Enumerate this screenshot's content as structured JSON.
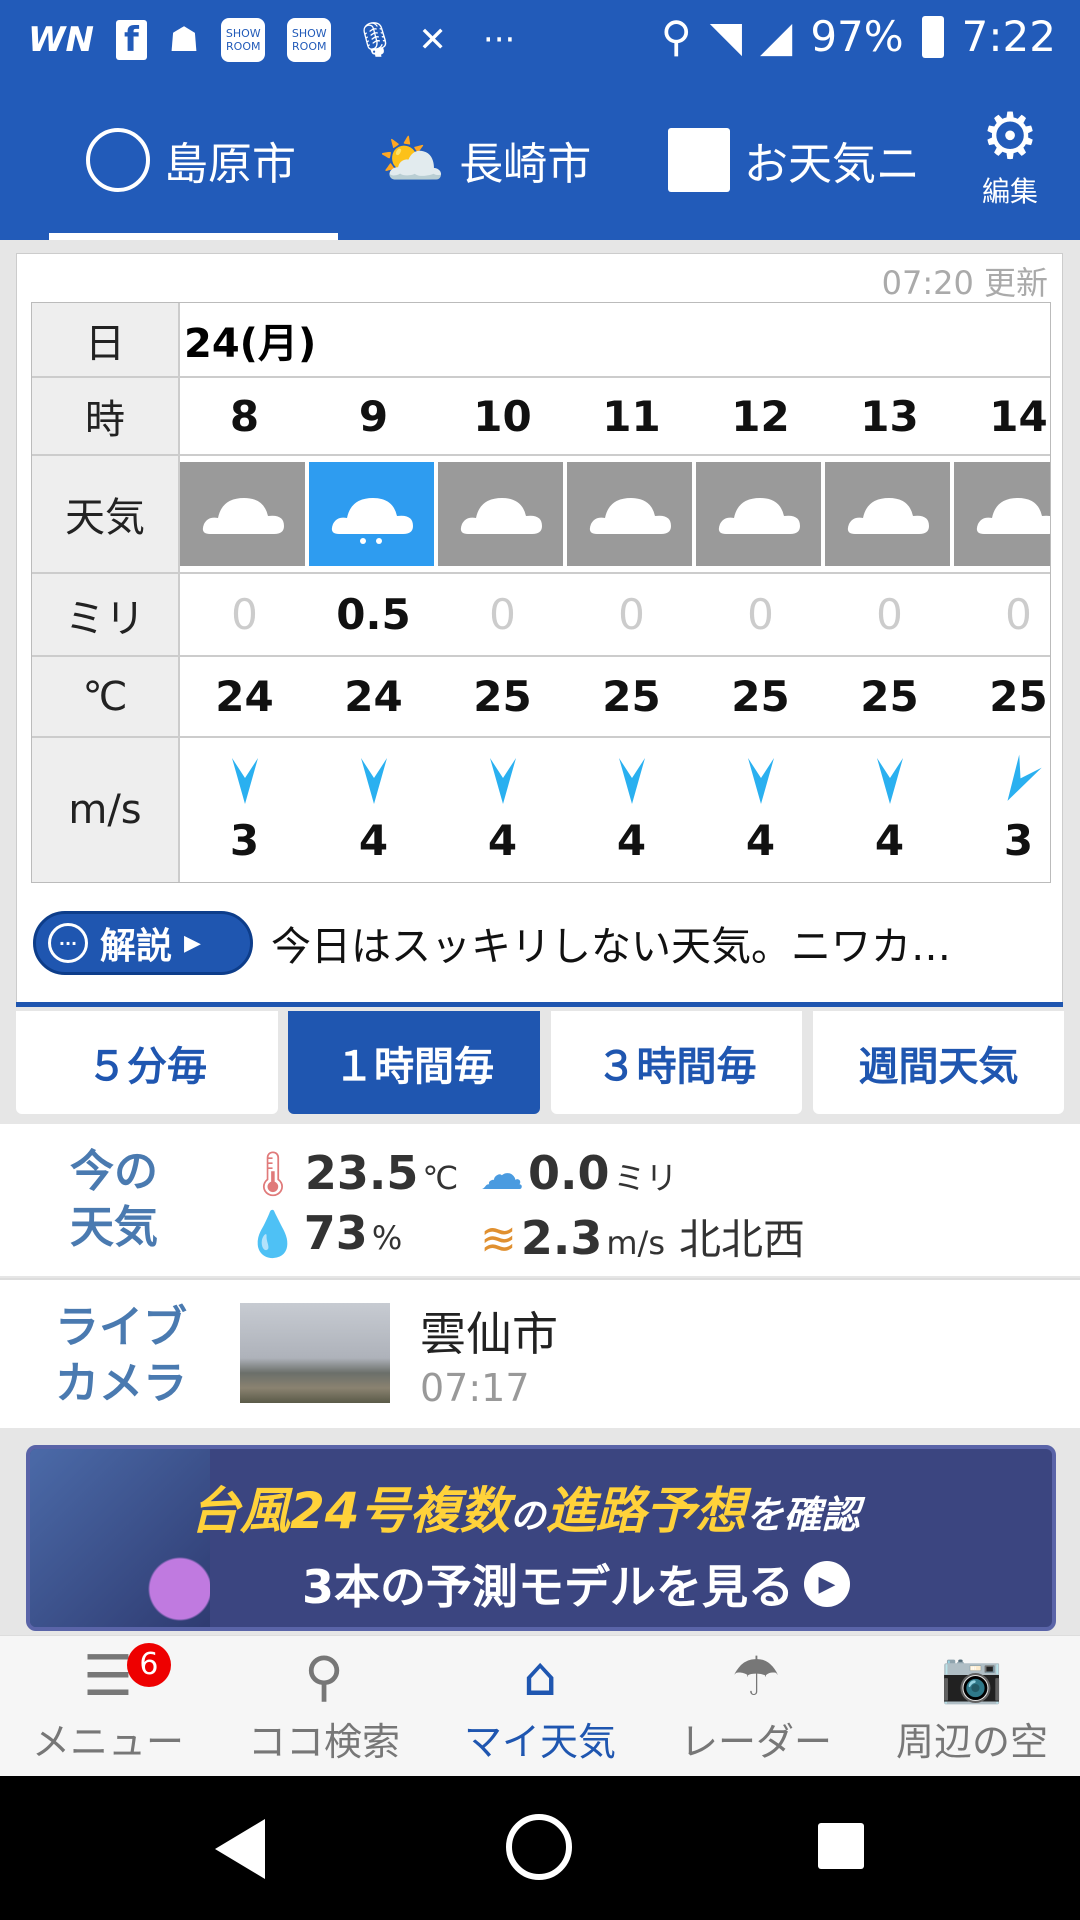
{
  "status_bar": {
    "battery": "97%",
    "time": "7:22",
    "icons": [
      "weathernews-icon",
      "facebook-icon",
      "app-mascot-icon",
      "showroom-icon",
      "showroom-icon",
      "voice-assistant-icon",
      "satellite-icon",
      "more-dots-icon",
      "location-icon",
      "wifi-icon",
      "signal-icon",
      "battery-icon"
    ],
    "showroom_label": "SHOW ROOM",
    "dots": "···"
  },
  "header": {
    "tabs": [
      {
        "label": "島原市",
        "icon": "location-target-icon"
      },
      {
        "label": "長崎市",
        "icon": "sun-cloud-icon"
      },
      {
        "label": "お天気ニ",
        "icon": "news-icon"
      }
    ],
    "edit_label": "編集",
    "active_tab": 0
  },
  "forecast": {
    "updated": "07:20 更新",
    "labels": {
      "day": "日",
      "hour": "時",
      "weather": "天気",
      "mm": "ミリ",
      "temp": "℃",
      "wind": "m/s"
    },
    "day": "24(月)",
    "hours": [
      "8",
      "9",
      "10",
      "11",
      "12",
      "13",
      "14"
    ],
    "weather": [
      "cloudy",
      "rain",
      "cloudy",
      "cloudy",
      "cloudy",
      "cloudy",
      "cloudy"
    ],
    "precip": [
      "0",
      "0.5",
      "0",
      "0",
      "0",
      "0",
      "0"
    ],
    "temps": [
      "24",
      "24",
      "25",
      "25",
      "25",
      "25",
      "25"
    ],
    "wind_speed": [
      "3",
      "4",
      "4",
      "4",
      "4",
      "4",
      "3"
    ],
    "wind_dir": [
      "N",
      "N",
      "N",
      "N",
      "N",
      "N",
      "NNE"
    ],
    "commentary_button": "解説",
    "commentary": "今日はスッキリしない天気。ニワカ…"
  },
  "period_tabs": [
    "５分毎",
    "１時間毎",
    "３時間毎",
    "週間天気"
  ],
  "active_period": 1,
  "current": {
    "label1": "今の",
    "label2": "天気",
    "temp": "23.5",
    "temp_unit": "℃",
    "precip": "0.0",
    "precip_unit": "ミリ",
    "humidity": "73",
    "humidity_unit": "%",
    "wind": "2.3",
    "wind_unit": "m/s",
    "wind_dir": "北北西"
  },
  "camera": {
    "label1": "ライブ",
    "label2": "カメラ",
    "city": "雲仙市",
    "time": "07:17"
  },
  "banner": {
    "line1a": "台風24号",
    "line1b": "複数",
    "line1c": "の",
    "line1d": "進路予想",
    "line1e": "を確認",
    "line2": "3本の予測モデルを見る"
  },
  "bottom_nav": [
    {
      "label": "メニュー",
      "icon": "menu-icon",
      "badge": "6"
    },
    {
      "label": "ココ検索",
      "icon": "search-icon"
    },
    {
      "label": "マイ天気",
      "icon": "home-icon"
    },
    {
      "label": "レーダー",
      "icon": "umbrella-icon"
    },
    {
      "label": "周辺の空",
      "icon": "camera-icon"
    }
  ],
  "colors": {
    "brand": "#225bb9",
    "rain_cell": "#2e9cf0",
    "cloud_cell": "#9a9a9a",
    "wind_arrow": "#2ab0f0"
  }
}
